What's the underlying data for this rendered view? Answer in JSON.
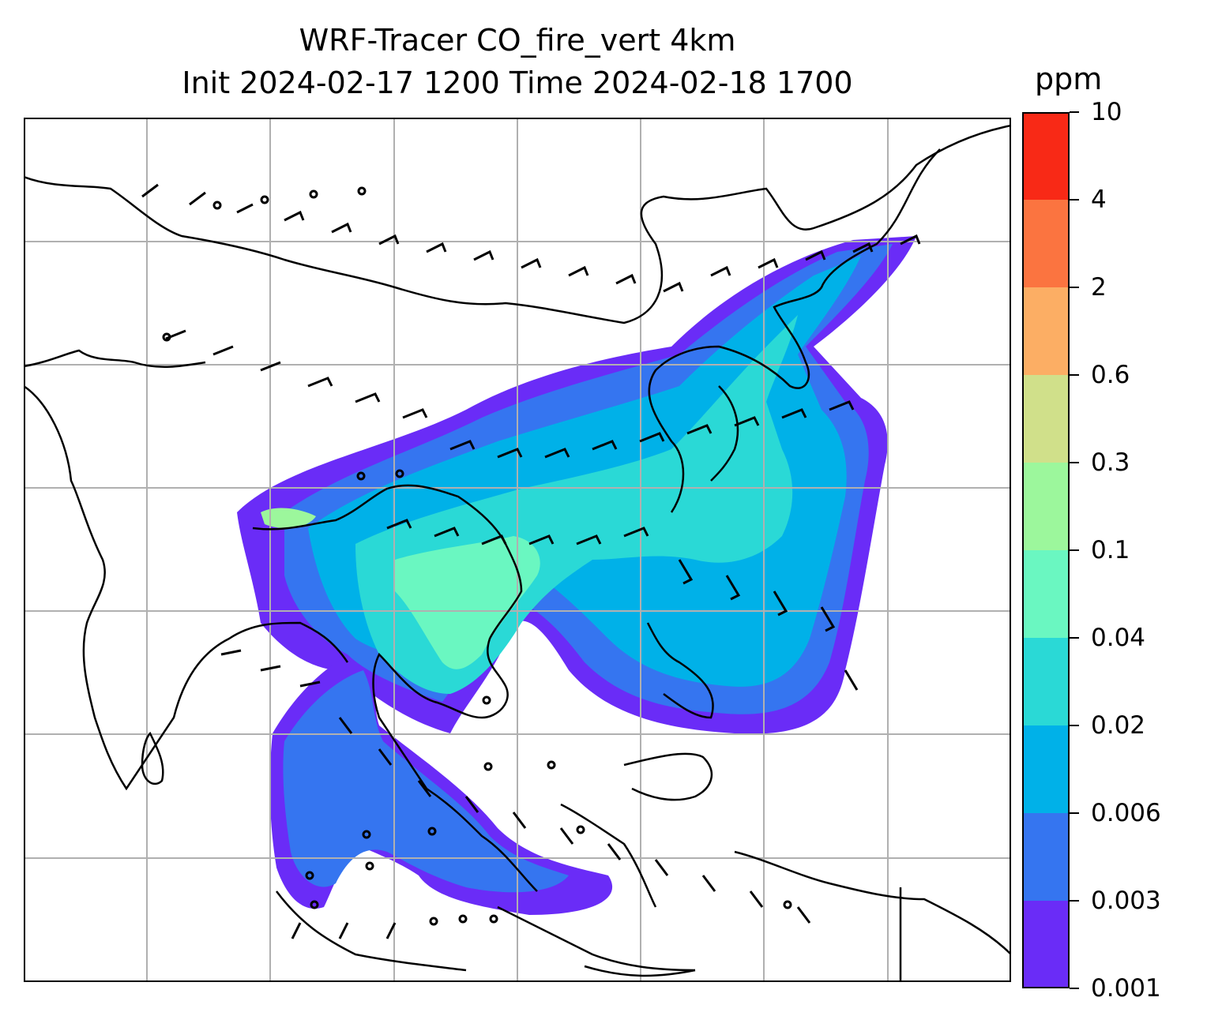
{
  "title_line1": "WRF-Tracer CO_fire_vert 4km",
  "title_line2": "Init 2024-02-17 1200 Time 2024-02-18 1700",
  "colorbar": {
    "unit": "ppm",
    "levels": [
      "0.001",
      "0.003",
      "0.006",
      "0.02",
      "0.04",
      "0.1",
      "0.3",
      "0.6",
      "2",
      "4",
      "10"
    ],
    "colors": [
      "#6a2cf7",
      "#3575f0",
      "#00b1e8",
      "#2ad9d6",
      "#6af7c1",
      "#9cf79c",
      "#d0e08a",
      "#fcae64",
      "#fb7440",
      "#f82916"
    ]
  },
  "map": {
    "grid": true,
    "overlay": "wind barbs",
    "coastline_color": "#000000"
  }
}
